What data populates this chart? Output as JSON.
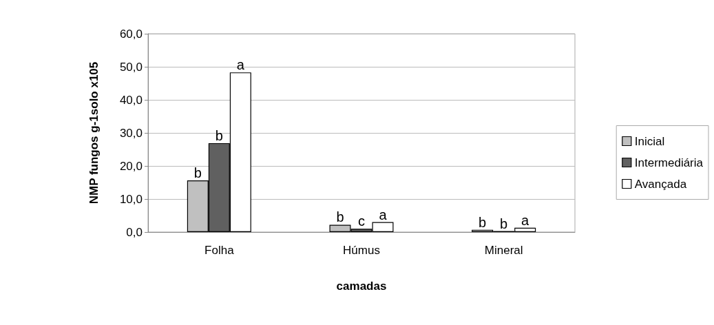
{
  "chart_data": {
    "type": "bar",
    "xlabel": "camadas",
    "ylabel": "NMP fungos g-1solo x105",
    "categories": [
      "Folha",
      "Húmus",
      "Mineral"
    ],
    "series": [
      {
        "name": "Inicial",
        "color": "#c0c0c0",
        "values": [
          15.6,
          2.2,
          0.7
        ],
        "value_labels": [
          "b",
          "b",
          "b"
        ]
      },
      {
        "name": "Intermediária",
        "color": "#606060",
        "values": [
          26.9,
          1.0,
          0.3
        ],
        "value_labels": [
          "b",
          "c",
          "b"
        ]
      },
      {
        "name": "Avançada",
        "color": "#ffffff",
        "values": [
          48.3,
          3.0,
          1.3
        ],
        "value_labels": [
          "a",
          "a",
          "a"
        ]
      }
    ],
    "ylim": [
      0,
      60
    ],
    "yticks": [
      {
        "value": 0,
        "label": "0,0"
      },
      {
        "value": 10,
        "label": "10,0"
      },
      {
        "value": 20,
        "label": "20,0"
      },
      {
        "value": 30,
        "label": "30,0"
      },
      {
        "value": 40,
        "label": "40,0"
      },
      {
        "value": 50,
        "label": "50,0"
      },
      {
        "value": 60,
        "label": "60,0"
      }
    ],
    "grid": "y",
    "legend": "right"
  }
}
